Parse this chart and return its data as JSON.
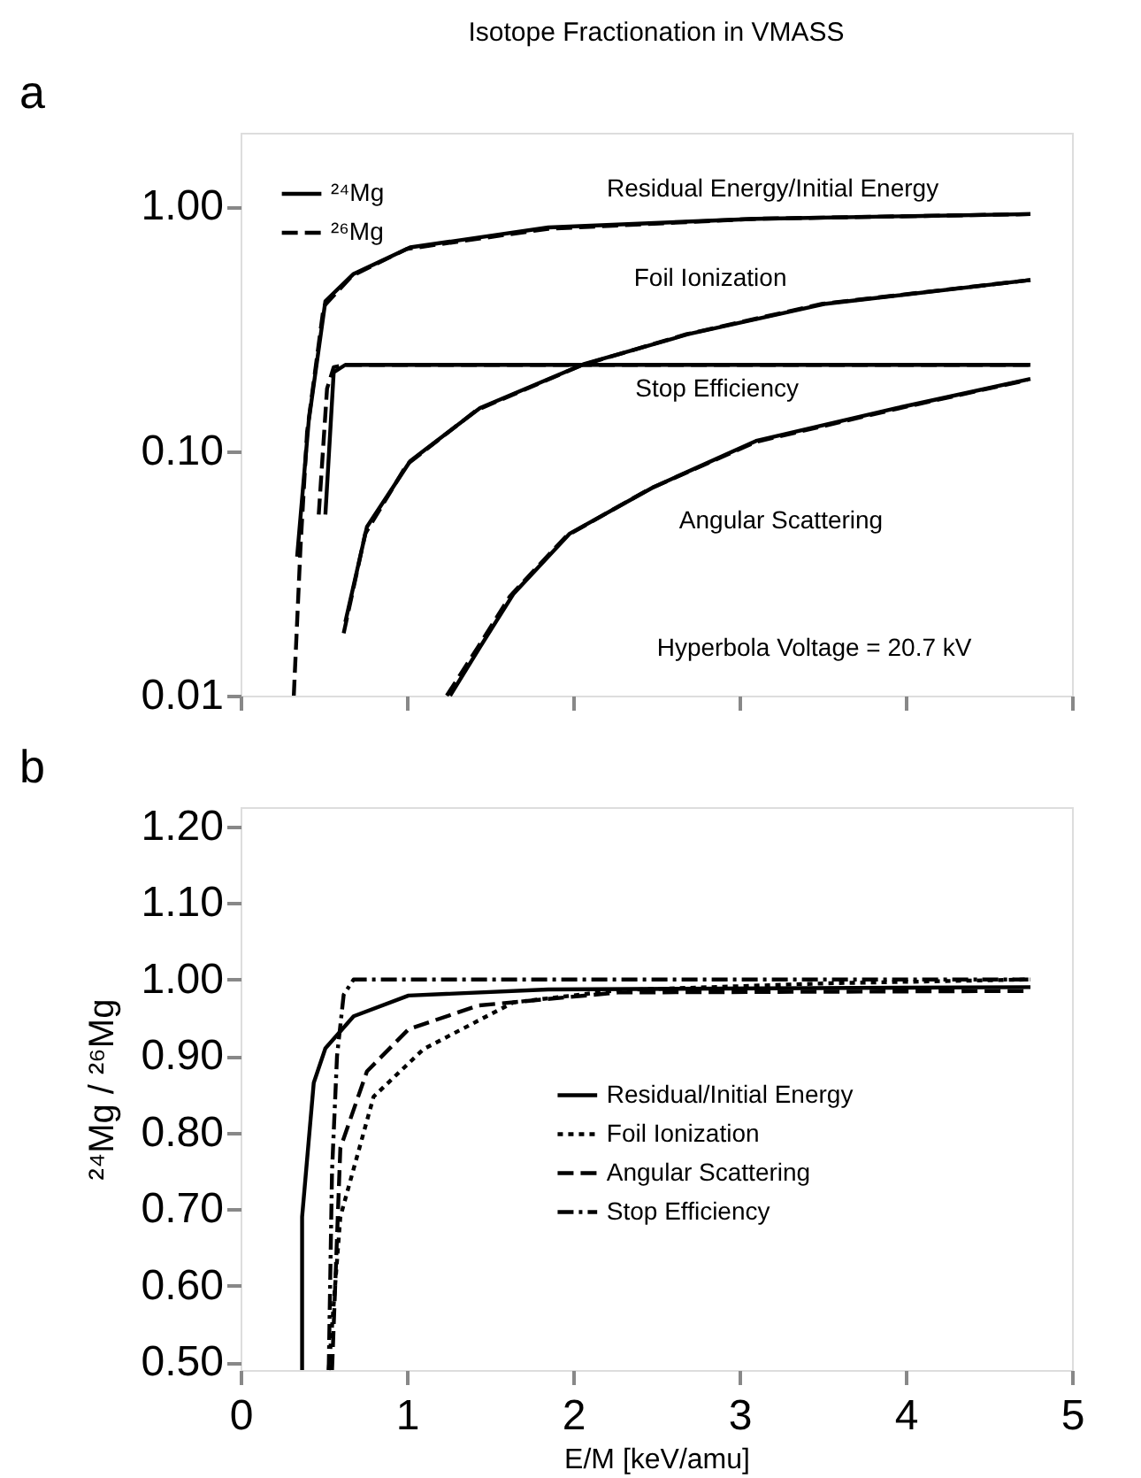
{
  "chart_data": [
    {
      "type": "line",
      "title": "Isotope Fractionation in VMASS",
      "log": "y",
      "xlim": [
        0,
        5
      ],
      "xticks": [
        0,
        1,
        2,
        3,
        4,
        5
      ],
      "ylim": [
        0.01,
        2.0
      ],
      "yticks": [
        {
          "value": 0.01,
          "label": "0.01"
        },
        {
          "value": 0.1,
          "label": "0.10"
        },
        {
          "value": 1,
          "label": "1.00"
        }
      ],
      "tick_labels": "y",
      "grid": false,
      "legend": "top left",
      "series": [
        {
          "name": "²⁴Mg",
          "color": "#000000",
          "line_style": "solid",
          "x": [
            0.34,
            0.41,
            0.51,
            0.68,
            1.02,
            1.85,
            3.1,
            4.75
          ],
          "values": [
            0.037,
            0.133,
            0.41,
            0.53,
            0.68,
            0.82,
            0.89,
            0.93
          ]
        },
        {
          "name": "²⁶Mg",
          "color": "#000000",
          "line_style": "dashed",
          "x": [
            0.32,
            0.36,
            0.4,
            0.5,
            0.67,
            1.0,
            1.85,
            3.1,
            4.75
          ],
          "values": [
            0.01,
            0.04,
            0.12,
            0.39,
            0.52,
            0.67,
            0.81,
            0.89,
            0.93
          ]
        },
        {
          "color": "#000000",
          "line_style": "solid",
          "x": [
            0.63,
            0.76,
            1.02,
            1.44,
            2.06,
            2.69,
            3.52,
            4.75
          ],
          "values": [
            0.02,
            0.049,
            0.091,
            0.15,
            0.226,
            0.3,
            0.4,
            0.5
          ]
        },
        {
          "color": "#000000",
          "line_style": "dashed",
          "x": [
            0.62,
            0.75,
            1.0,
            1.42,
            2.05,
            2.68,
            3.5,
            4.75
          ],
          "values": [
            0.018,
            0.046,
            0.088,
            0.147,
            0.224,
            0.3,
            0.4,
            0.5
          ]
        },
        {
          "color": "#000000",
          "line_style": "solid",
          "x": [
            0.51,
            0.56,
            0.63,
            4.75
          ],
          "values": [
            0.055,
            0.21,
            0.225,
            0.225
          ]
        },
        {
          "color": "#000000",
          "line_style": "dashed",
          "x": [
            0.47,
            0.52,
            0.56,
            0.63,
            4.75
          ],
          "values": [
            0.055,
            0.18,
            0.22,
            0.225,
            0.225
          ]
        },
        {
          "color": "#000000",
          "line_style": "solid",
          "x": [
            1.26,
            1.44,
            1.64,
            1.98,
            2.48,
            3.1,
            3.95,
            4.75
          ],
          "values": [
            0.01,
            0.0158,
            0.026,
            0.046,
            0.071,
            0.11,
            0.15,
            0.197
          ]
        },
        {
          "color": "#000000",
          "line_style": "dashed",
          "x": [
            1.24,
            1.42,
            1.62,
            1.96,
            2.46,
            3.1,
            3.95,
            4.73
          ],
          "values": [
            0.01,
            0.0155,
            0.0255,
            0.045,
            0.07,
            0.109,
            0.149,
            0.195
          ]
        }
      ],
      "annotations": [
        "a",
        "Hyperbola Voltage = 20.7 kV",
        "Residual Energy/Initial Energy",
        "Foil Ionization",
        "Stop Efficiency",
        "Angular Scattering"
      ]
    },
    {
      "type": "line",
      "xlabel": "E/M [keV/amu]",
      "ylabel": "²⁴Mg / ²⁶Mg",
      "xlim": [
        0,
        5
      ],
      "xticks": [
        0,
        1,
        2,
        3,
        4,
        5
      ],
      "ylim": [
        0.49,
        1.225
      ],
      "yticks": [
        {
          "value": 0.5,
          "label": "0.50"
        },
        {
          "value": 0.6,
          "label": "0.60"
        },
        {
          "value": 0.7,
          "label": "0.70"
        },
        {
          "value": 0.8,
          "label": "0.80"
        },
        {
          "value": 0.9,
          "label": "0.90"
        },
        {
          "value": 1.0,
          "label": "1.00"
        },
        {
          "value": 1.1,
          "label": "1.10"
        },
        {
          "value": 1.2,
          "label": "1.20"
        }
      ],
      "grid": false,
      "legend": "right",
      "series": [
        {
          "name": "Residual/Initial Energy",
          "color": "#000000",
          "line_style": "solid",
          "x": [
            0.37,
            0.37,
            0.44,
            0.51,
            0.68,
            1.01,
            1.85,
            4.75
          ],
          "values": [
            0.49,
            0.69,
            0.865,
            0.91,
            0.952,
            0.979,
            0.987,
            0.99
          ]
        },
        {
          "name": "Foil Ionization",
          "color": "#000000",
          "line_style": "dotted",
          "x": [
            0.53,
            0.6,
            0.8,
            1.1,
            1.64,
            2.27,
            3.53,
            4.75
          ],
          "values": [
            0.49,
            0.69,
            0.847,
            0.909,
            0.97,
            0.986,
            0.995,
            1.0
          ]
        },
        {
          "name": "Angular Scattering",
          "color": "#000000",
          "line_style": "dashed",
          "x": [
            0.55,
            0.6,
            0.76,
            1.01,
            1.43,
            2.27,
            4.75
          ],
          "values": [
            0.49,
            0.78,
            0.88,
            0.935,
            0.966,
            0.983,
            0.985
          ]
        },
        {
          "name": "Stop Efficiency",
          "color": "#000000",
          "line_style": "dashdot",
          "x": [
            0.53,
            0.55,
            0.58,
            0.62,
            0.68,
            4.75
          ],
          "values": [
            0.49,
            0.75,
            0.9,
            0.98,
            1.0,
            1.0
          ]
        }
      ],
      "annotations": [
        "b"
      ]
    }
  ]
}
